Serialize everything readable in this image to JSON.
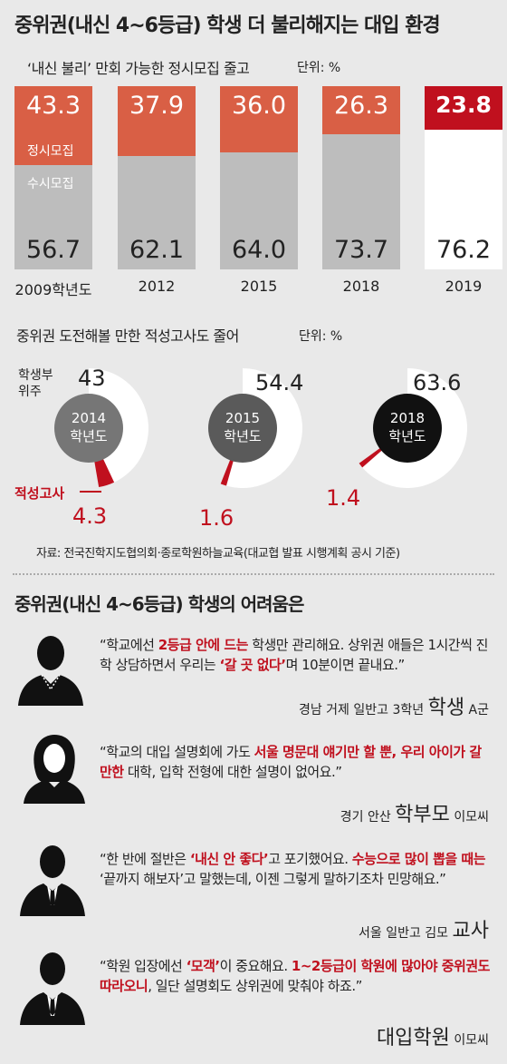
{
  "title": "중위권(내신 4~6등급) 학생 더 불리해지는 대입 환경",
  "bar_section": {
    "subtitle": "‘내신 불리’ 만회 가능한 정시모집 줄고",
    "unit": "단위: %",
    "label_jeongsi": "정시모집",
    "label_susi": "수시모집"
  },
  "donut_section": {
    "subtitle": "중위권 도전해볼 만한 적성고사도 줄어",
    "unit": "단위: %",
    "label_student": "학생부 위주",
    "label_aptitude": "적성고사",
    "years": [
      {
        "line1": "2014",
        "line2": "학년도"
      },
      {
        "line1": "2015",
        "line2": "학년도"
      },
      {
        "line1": "2018",
        "line2": "학년도"
      }
    ]
  },
  "source": "자료: 전국진학지도협의회·종로학원하늘교육(대교협 발표 시행계획 공시 기준)",
  "chart_data": [
    {
      "type": "bar",
      "categories": [
        "2009학년도",
        "2012",
        "2015",
        "2018",
        "2019"
      ],
      "series": [
        {
          "name": "정시모집",
          "values": [
            43.3,
            37.9,
            36.0,
            26.3,
            23.8
          ],
          "labels": [
            "43.3",
            "37.9",
            "36.0",
            "26.3",
            "23.8"
          ]
        },
        {
          "name": "수시모집",
          "values": [
            56.7,
            62.1,
            64.0,
            73.7,
            76.2
          ],
          "labels": [
            "56.7",
            "62.1",
            "64.0",
            "73.7",
            "76.2"
          ]
        }
      ],
      "ylim": [
        0,
        100
      ],
      "colors": {
        "jeongsi": "#d95f45",
        "susi": "#bdbdbd",
        "highlight_top": "#c0101e",
        "highlight_bottom": "#ffffff"
      }
    },
    {
      "type": "pie",
      "categories": [
        "2014 학년도",
        "2015 학년도",
        "2018 학년도"
      ],
      "series": [
        {
          "name": "학생부 위주",
          "values": [
            43,
            54.4,
            63.6
          ],
          "labels": [
            "43",
            "54.4",
            "63.6"
          ]
        },
        {
          "name": "적성고사",
          "values": [
            4.3,
            1.6,
            1.4
          ],
          "labels": [
            "4.3",
            "1.6",
            "1.4"
          ]
        }
      ],
      "colors": {
        "student": "#ffffff",
        "aptitude": "#c0101e",
        "center": [
          "#767676",
          "#5a5a5a",
          "#111111"
        ]
      }
    }
  ],
  "difficulty_section": {
    "title": "중위권(내신 4~6등급) 학생의 어려움은",
    "quotes": [
      {
        "segments": [
          {
            "text": "“학교에선 ",
            "red": false
          },
          {
            "text": "2등급 안에 드는",
            "red": true
          },
          {
            "text": " 학생만 관리해요. 상위권 애들은 1시간씩 진학 상담하면서 우리는 ",
            "red": false
          },
          {
            "text": "‘갈 곳 없다’",
            "red": true
          },
          {
            "text": "며 10분이면 끝내요.”",
            "red": false
          }
        ],
        "who_prefix": "경남 거제 일반고 3학년",
        "who_role": "학생",
        "who_name": "A군"
      },
      {
        "segments": [
          {
            "text": "“학교의 대입 설명회에 가도 ",
            "red": false
          },
          {
            "text": "서울 명문대 얘기만 할 뿐, 우리 아이가 갈 만한",
            "red": true
          },
          {
            "text": " 대학, 입학 전형에 대한 설명이 없어요.”",
            "red": false
          }
        ],
        "who_prefix": "경기 안산",
        "who_role": "학부모",
        "who_name": "이모씨"
      },
      {
        "segments": [
          {
            "text": "“한 반에 절반은 ",
            "red": false
          },
          {
            "text": "‘내신 안 좋다’",
            "red": true
          },
          {
            "text": "고 포기했어요. ",
            "red": false
          },
          {
            "text": "수능으로 많이 뽑을 때는",
            "red": true
          },
          {
            "text": " ‘끝까지 해보자’고 말했는데, 이젠 그렇게 말하기조차 민망해요.”",
            "red": false
          }
        ],
        "who_prefix": "서울 일반고 김모",
        "who_role": "교사",
        "who_name": ""
      },
      {
        "segments": [
          {
            "text": "“학원 입장에선 ",
            "red": false
          },
          {
            "text": "‘모객’",
            "red": true
          },
          {
            "text": "이 중요해요. ",
            "red": false
          },
          {
            "text": "1~2등급이 학원에 많아야 중위권도 따라오니",
            "red": true
          },
          {
            "text": ", 일단 설명회도 상위권에 맞춰야 하죠.”",
            "red": false
          }
        ],
        "who_prefix": "",
        "who_role": "대입학원",
        "who_name": "이모씨"
      }
    ]
  }
}
